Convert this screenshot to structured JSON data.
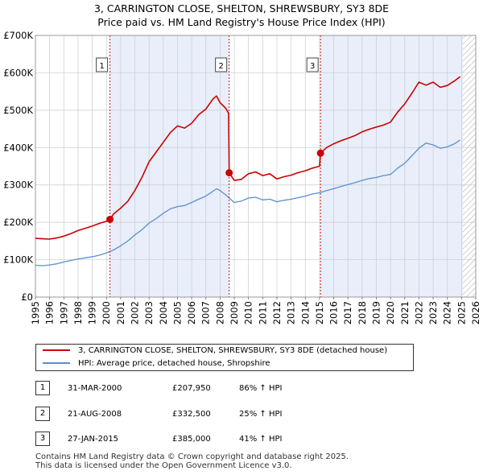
{
  "title_line1": "3, CARRINGTON CLOSE, SHELTON, SHREWSBURY, SY3 8DE",
  "title_line2": "Price paid vs. HM Land Registry's House Price Index (HPI)",
  "colors": {
    "red": "#cc0000",
    "blue": "#5b8fcf",
    "shade": "#e8eefa",
    "grid": "#cccccc"
  },
  "chart_data": {
    "type": "line",
    "title": "3, CARRINGTON CLOSE, SHELTON, SHREWSBURY, SY3 8DE — Price paid vs. HM Land Registry's House Price Index (HPI)",
    "xlim": [
      1995,
      2026
    ],
    "ylim": [
      0,
      700000
    ],
    "x_ticks": [
      1995,
      1996,
      1997,
      1998,
      1999,
      2000,
      2001,
      2002,
      2003,
      2004,
      2005,
      2006,
      2007,
      2008,
      2009,
      2010,
      2011,
      2012,
      2013,
      2014,
      2015,
      2016,
      2017,
      2018,
      2019,
      2020,
      2021,
      2022,
      2023,
      2024,
      2025,
      2026
    ],
    "y_ticks": [
      {
        "value": 0,
        "label": "£0"
      },
      {
        "value": 100000,
        "label": "£100K"
      },
      {
        "value": 200000,
        "label": "£200K"
      },
      {
        "value": 300000,
        "label": "£300K"
      },
      {
        "value": 400000,
        "label": "£400K"
      },
      {
        "value": 500000,
        "label": "£500K"
      },
      {
        "value": 600000,
        "label": "£600K"
      },
      {
        "value": 700000,
        "label": "£700K"
      }
    ],
    "shaded_regions": [
      [
        2000.25,
        2008.64
      ],
      [
        2015.07,
        2025.1
      ]
    ],
    "future_hatch_from": 2025.1,
    "series": [
      {
        "name": "3, CARRINGTON CLOSE, SHELTON, SHREWSBURY, SY3 8DE (detached house)",
        "color": "#cc0000",
        "points": [
          [
            1995.0,
            157000
          ],
          [
            1995.5,
            156000
          ],
          [
            1996.0,
            155000
          ],
          [
            1996.5,
            158000
          ],
          [
            1997.0,
            163000
          ],
          [
            1997.5,
            170000
          ],
          [
            1998.0,
            178000
          ],
          [
            1998.5,
            184000
          ],
          [
            1999.0,
            190000
          ],
          [
            1999.5,
            197000
          ],
          [
            2000.0,
            203000
          ],
          [
            2000.25,
            207950
          ],
          [
            2000.5,
            222000
          ],
          [
            2001.0,
            238000
          ],
          [
            2001.5,
            256000
          ],
          [
            2002.0,
            285000
          ],
          [
            2002.5,
            320000
          ],
          [
            2003.0,
            362000
          ],
          [
            2003.5,
            388000
          ],
          [
            2004.0,
            414000
          ],
          [
            2004.5,
            440000
          ],
          [
            2005.0,
            458000
          ],
          [
            2005.5,
            452000
          ],
          [
            2006.0,
            465000
          ],
          [
            2006.5,
            488000
          ],
          [
            2007.0,
            503000
          ],
          [
            2007.5,
            530000
          ],
          [
            2007.75,
            538000
          ],
          [
            2008.0,
            520000
          ],
          [
            2008.4,
            505000
          ],
          [
            2008.6,
            492000
          ],
          [
            2008.64,
            332500
          ],
          [
            2009.0,
            312000
          ],
          [
            2009.5,
            315000
          ],
          [
            2010.0,
            330000
          ],
          [
            2010.5,
            335000
          ],
          [
            2011.0,
            325000
          ],
          [
            2011.5,
            330000
          ],
          [
            2012.0,
            316000
          ],
          [
            2012.5,
            322000
          ],
          [
            2013.0,
            326000
          ],
          [
            2013.5,
            333000
          ],
          [
            2014.0,
            338000
          ],
          [
            2014.5,
            345000
          ],
          [
            2015.0,
            350000
          ],
          [
            2015.07,
            385000
          ],
          [
            2015.5,
            400000
          ],
          [
            2016.0,
            410000
          ],
          [
            2016.5,
            418000
          ],
          [
            2017.0,
            425000
          ],
          [
            2017.5,
            432000
          ],
          [
            2018.0,
            442000
          ],
          [
            2018.5,
            449000
          ],
          [
            2019.0,
            455000
          ],
          [
            2019.5,
            460000
          ],
          [
            2020.0,
            468000
          ],
          [
            2020.5,
            495000
          ],
          [
            2021.0,
            517000
          ],
          [
            2021.5,
            545000
          ],
          [
            2022.0,
            575000
          ],
          [
            2022.5,
            567000
          ],
          [
            2023.0,
            575000
          ],
          [
            2023.5,
            561000
          ],
          [
            2024.0,
            566000
          ],
          [
            2024.5,
            578000
          ],
          [
            2024.9,
            590000
          ]
        ],
        "sale_points": [
          [
            2000.25,
            207950
          ],
          [
            2008.64,
            332500
          ],
          [
            2015.07,
            385000
          ]
        ]
      },
      {
        "name": "HPI: Average price, detached house, Shropshire",
        "color": "#5b8fcf",
        "points": [
          [
            1995.0,
            85000
          ],
          [
            1995.5,
            84000
          ],
          [
            1996.0,
            86000
          ],
          [
            1996.5,
            89000
          ],
          [
            1997.0,
            94000
          ],
          [
            1997.5,
            98000
          ],
          [
            1998.0,
            102000
          ],
          [
            1998.5,
            105000
          ],
          [
            1999.0,
            108000
          ],
          [
            1999.5,
            112000
          ],
          [
            2000.0,
            118000
          ],
          [
            2000.5,
            126000
          ],
          [
            2001.0,
            137000
          ],
          [
            2001.5,
            150000
          ],
          [
            2002.0,
            166000
          ],
          [
            2002.5,
            180000
          ],
          [
            2003.0,
            198000
          ],
          [
            2003.5,
            210000
          ],
          [
            2004.0,
            224000
          ],
          [
            2004.5,
            236000
          ],
          [
            2005.0,
            242000
          ],
          [
            2005.5,
            245000
          ],
          [
            2006.0,
            253000
          ],
          [
            2006.5,
            262000
          ],
          [
            2007.0,
            270000
          ],
          [
            2007.5,
            283000
          ],
          [
            2007.75,
            290000
          ],
          [
            2008.0,
            285000
          ],
          [
            2008.5,
            270000
          ],
          [
            2009.0,
            253000
          ],
          [
            2009.5,
            257000
          ],
          [
            2010.0,
            265000
          ],
          [
            2010.5,
            267000
          ],
          [
            2011.0,
            260000
          ],
          [
            2011.5,
            262000
          ],
          [
            2012.0,
            255000
          ],
          [
            2012.5,
            259000
          ],
          [
            2013.0,
            262000
          ],
          [
            2013.5,
            266000
          ],
          [
            2014.0,
            270000
          ],
          [
            2014.5,
            276000
          ],
          [
            2015.0,
            279000
          ],
          [
            2015.5,
            285000
          ],
          [
            2016.0,
            290000
          ],
          [
            2016.5,
            296000
          ],
          [
            2017.0,
            301000
          ],
          [
            2017.5,
            306000
          ],
          [
            2018.0,
            312000
          ],
          [
            2018.5,
            317000
          ],
          [
            2019.0,
            320000
          ],
          [
            2019.5,
            325000
          ],
          [
            2020.0,
            328000
          ],
          [
            2020.5,
            345000
          ],
          [
            2021.0,
            358000
          ],
          [
            2021.5,
            378000
          ],
          [
            2022.0,
            398000
          ],
          [
            2022.5,
            412000
          ],
          [
            2023.0,
            407000
          ],
          [
            2023.5,
            398000
          ],
          [
            2024.0,
            402000
          ],
          [
            2024.5,
            410000
          ],
          [
            2024.9,
            420000
          ]
        ]
      }
    ],
    "annotations": [
      {
        "label": "1",
        "x": 2000.25
      },
      {
        "label": "2",
        "x": 2008.64
      },
      {
        "label": "3",
        "x": 2015.07
      }
    ]
  },
  "legend": {
    "property_label": "3, CARRINGTON CLOSE, SHELTON, SHREWSBURY, SY3 8DE (detached house)",
    "hpi_label": "HPI: Average price, detached house, Shropshire"
  },
  "transactions": [
    {
      "num": "1",
      "date": "31-MAR-2000",
      "price": "£207,950",
      "hpi": "86% ↑ HPI"
    },
    {
      "num": "2",
      "date": "21-AUG-2008",
      "price": "£332,500",
      "hpi": "25% ↑ HPI"
    },
    {
      "num": "3",
      "date": "27-JAN-2015",
      "price": "£385,000",
      "hpi": "41% ↑ HPI"
    }
  ],
  "footer_line1": "Contains HM Land Registry data © Crown copyright and database right 2025.",
  "footer_line2": "This data is licensed under the Open Government Licence v3.0."
}
